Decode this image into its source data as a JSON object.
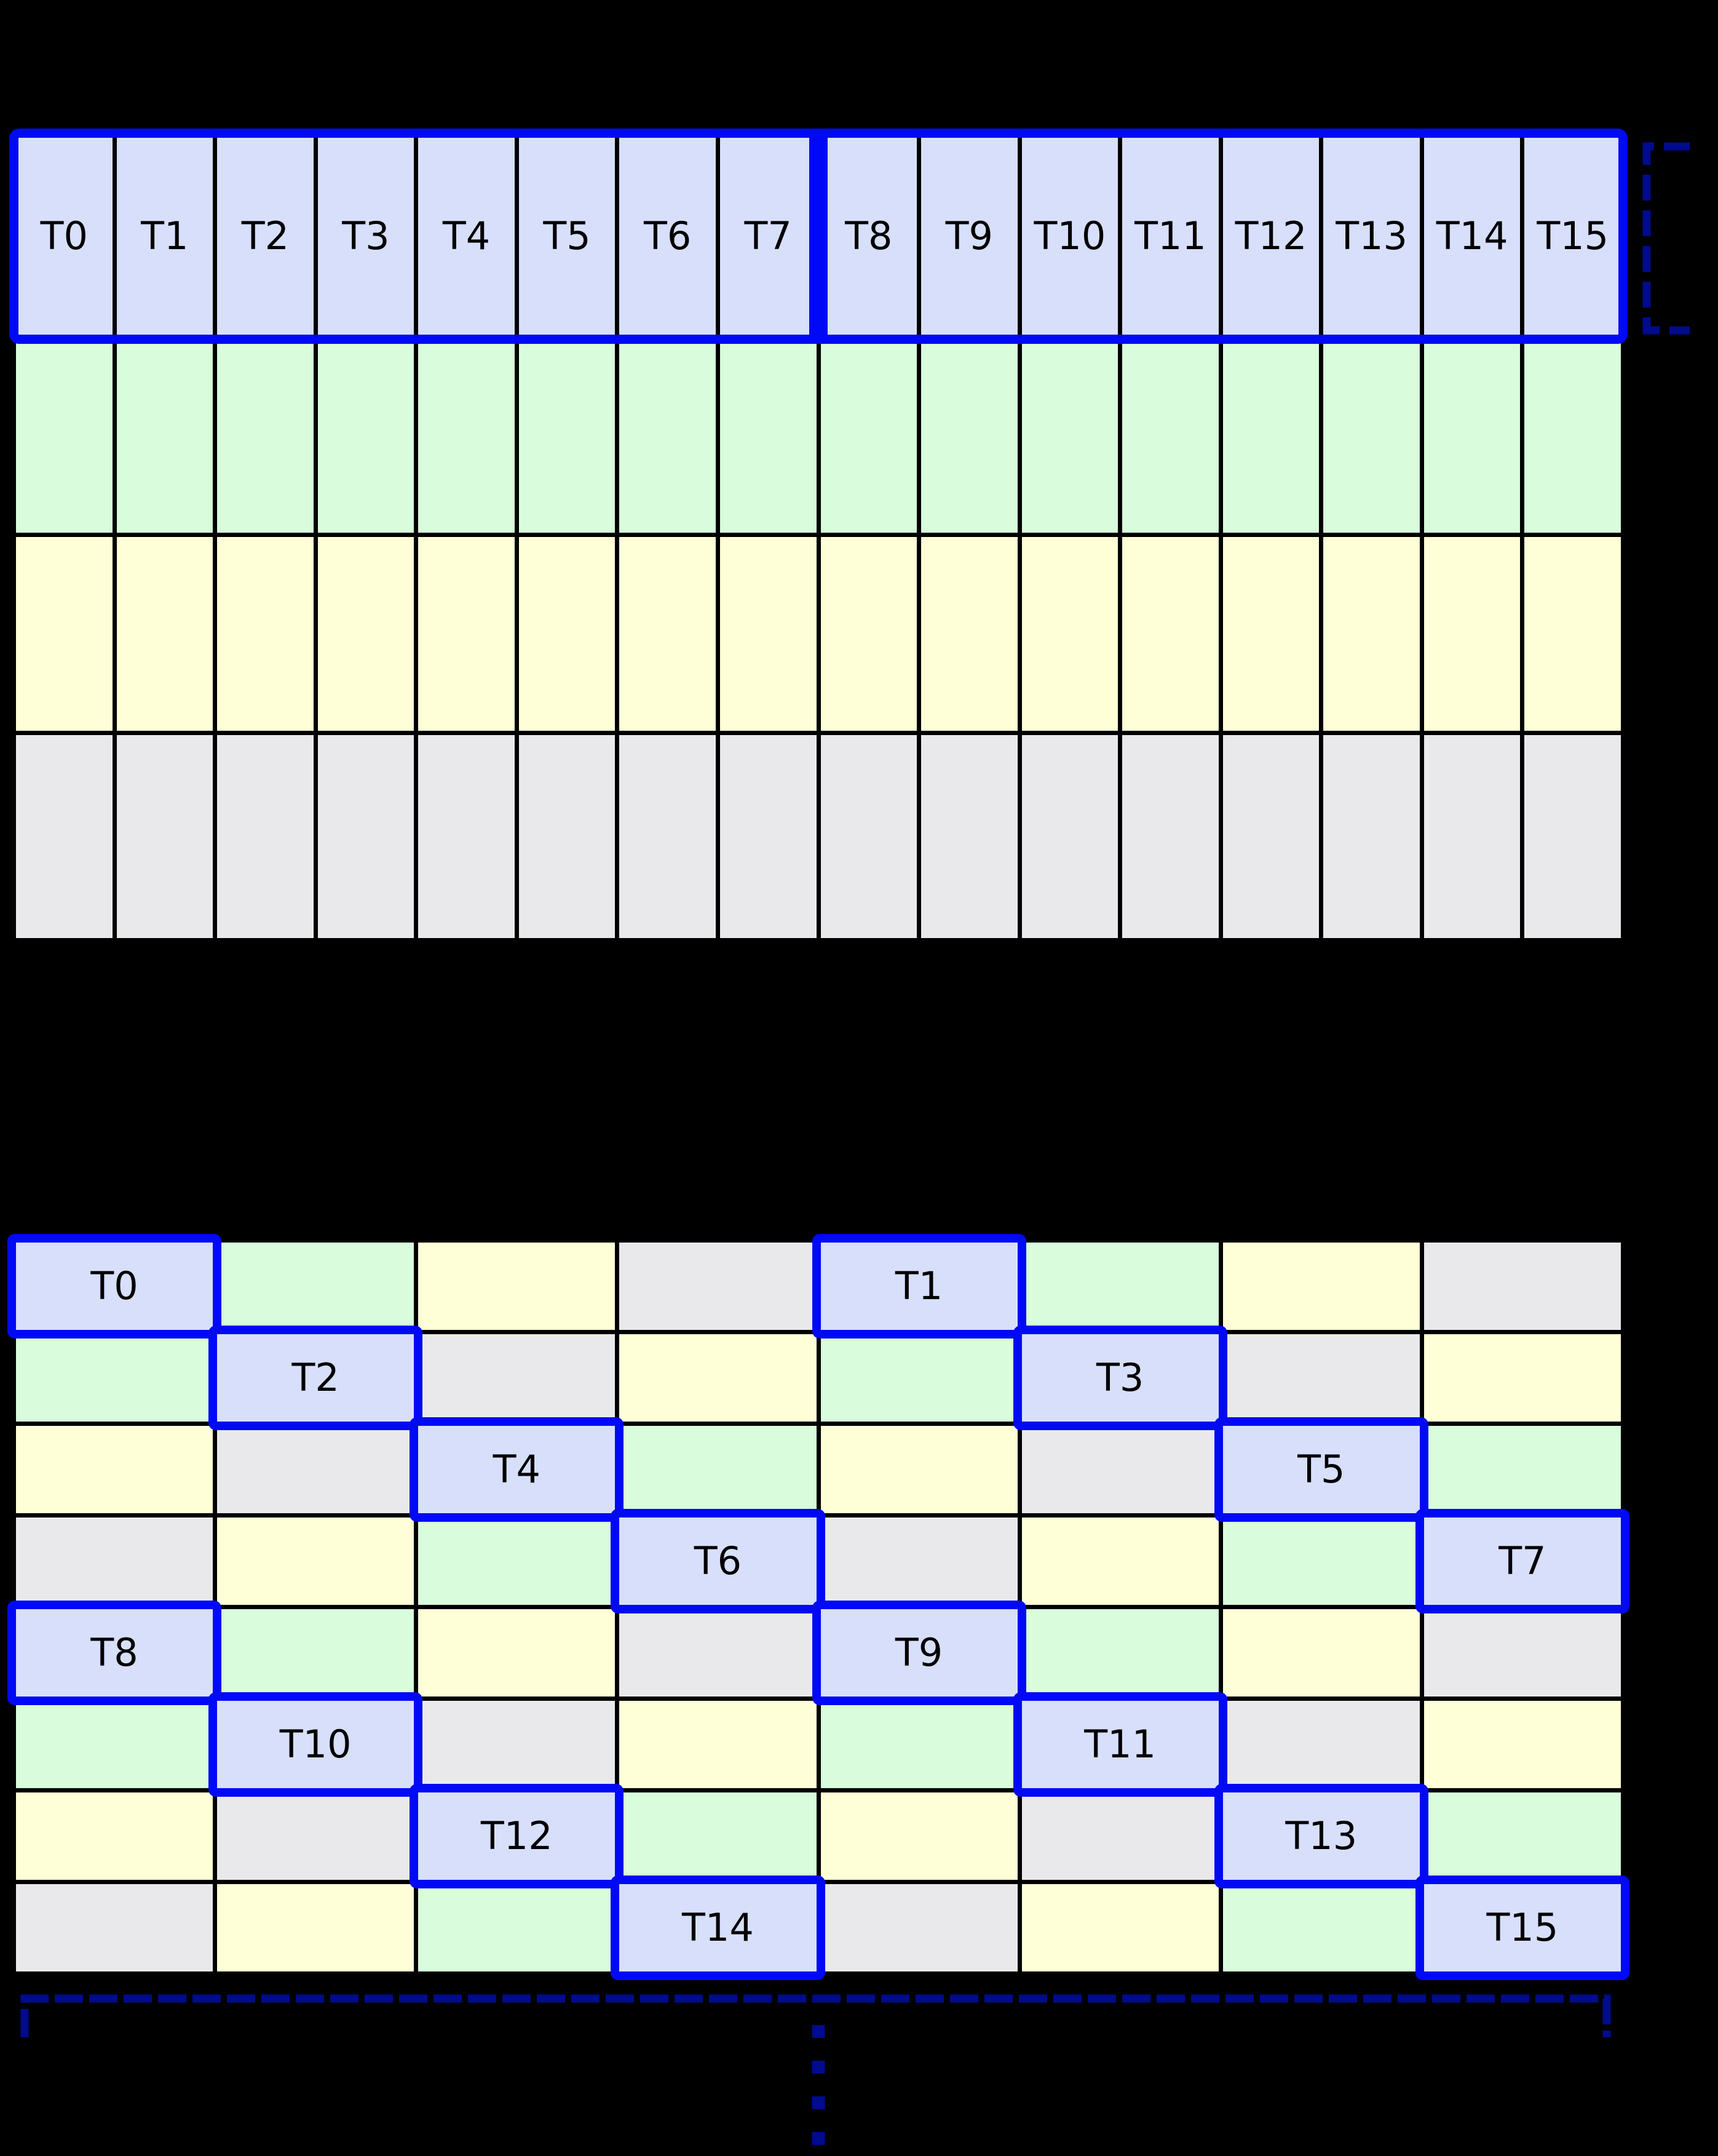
{
  "colors": {
    "background": "#000000",
    "grid_line": "#000000",
    "cell_blue": "#d7dffb",
    "cell_green": "#d8fcdc",
    "cell_yellow": "#ffffd7",
    "cell_gray": "#e9e9eb",
    "highlight_blue": "#0009f5",
    "dash_navy": "#000b8d",
    "label_text": "#000000"
  },
  "top_grid": {
    "rows": 4,
    "cols": 16,
    "row_colors": [
      "cell_blue",
      "cell_green",
      "cell_yellow",
      "cell_gray"
    ],
    "first_row_labels": [
      "T0",
      "T1",
      "T2",
      "T3",
      "T4",
      "T5",
      "T6",
      "T7",
      "T8",
      "T9",
      "T10",
      "T11",
      "T12",
      "T13",
      "T14",
      "T15"
    ],
    "highlight_groups": [
      {
        "label_range": "T0-T7"
      },
      {
        "label_range": "T8-T15"
      }
    ]
  },
  "bottom_grid": {
    "rows": 8,
    "cols": 8,
    "cell_colors": [
      [
        "cell_blue",
        "cell_green",
        "cell_yellow",
        "cell_gray",
        "cell_blue",
        "cell_green",
        "cell_yellow",
        "cell_gray"
      ],
      [
        "cell_green",
        "cell_blue",
        "cell_gray",
        "cell_yellow",
        "cell_green",
        "cell_blue",
        "cell_gray",
        "cell_yellow"
      ],
      [
        "cell_yellow",
        "cell_gray",
        "cell_blue",
        "cell_green",
        "cell_yellow",
        "cell_gray",
        "cell_blue",
        "cell_green"
      ],
      [
        "cell_gray",
        "cell_yellow",
        "cell_green",
        "cell_blue",
        "cell_gray",
        "cell_yellow",
        "cell_green",
        "cell_blue"
      ],
      [
        "cell_blue",
        "cell_green",
        "cell_yellow",
        "cell_gray",
        "cell_blue",
        "cell_green",
        "cell_yellow",
        "cell_gray"
      ],
      [
        "cell_green",
        "cell_blue",
        "cell_gray",
        "cell_yellow",
        "cell_green",
        "cell_blue",
        "cell_gray",
        "cell_yellow"
      ],
      [
        "cell_yellow",
        "cell_gray",
        "cell_blue",
        "cell_green",
        "cell_yellow",
        "cell_gray",
        "cell_blue",
        "cell_green"
      ],
      [
        "cell_gray",
        "cell_yellow",
        "cell_green",
        "cell_blue",
        "cell_gray",
        "cell_yellow",
        "cell_green",
        "cell_blue"
      ]
    ],
    "threads": [
      {
        "label": "T0",
        "row": 0,
        "col": 0
      },
      {
        "label": "T1",
        "row": 0,
        "col": 4
      },
      {
        "label": "T2",
        "row": 1,
        "col": 1
      },
      {
        "label": "T3",
        "row": 1,
        "col": 5
      },
      {
        "label": "T4",
        "row": 2,
        "col": 2
      },
      {
        "label": "T5",
        "row": 2,
        "col": 6
      },
      {
        "label": "T6",
        "row": 3,
        "col": 3
      },
      {
        "label": "T7",
        "row": 3,
        "col": 7
      },
      {
        "label": "T8",
        "row": 4,
        "col": 0
      },
      {
        "label": "T9",
        "row": 4,
        "col": 4
      },
      {
        "label": "T10",
        "row": 5,
        "col": 1
      },
      {
        "label": "T11",
        "row": 5,
        "col": 5
      },
      {
        "label": "T12",
        "row": 6,
        "col": 2
      },
      {
        "label": "T13",
        "row": 6,
        "col": 6
      },
      {
        "label": "T14",
        "row": 7,
        "col": 3
      },
      {
        "label": "T15",
        "row": 7,
        "col": 7
      }
    ]
  },
  "annotations": {
    "row_height_bracket": {
      "style": "dashed",
      "icon": "bracket-icon"
    },
    "width_bracket": {
      "style": "dashed",
      "icon": "bracket-icon"
    },
    "continuation_dots": {
      "count": 4,
      "icon": "vertical-ellipsis-icon"
    }
  }
}
